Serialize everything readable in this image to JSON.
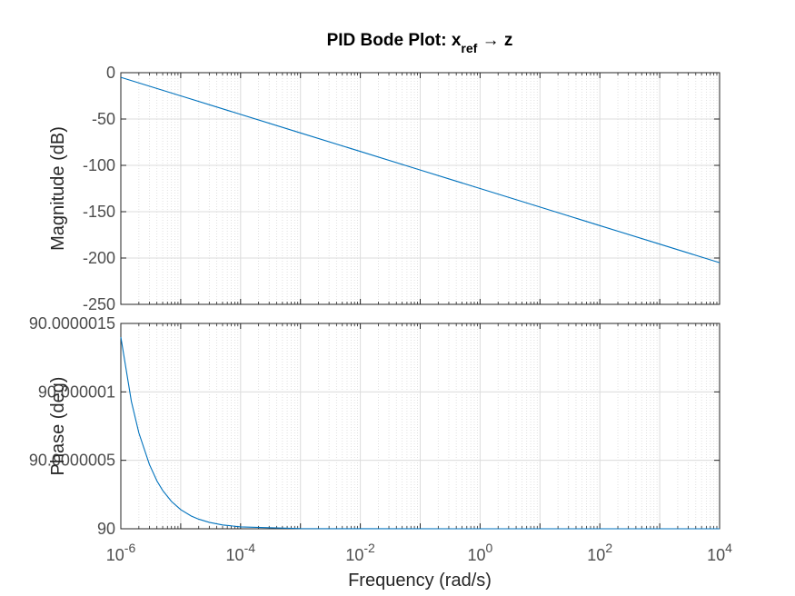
{
  "chart_data": {
    "type": "line",
    "title": "PID Bode Plot: x",
    "title_subscript": "ref",
    "title_arrow": "→",
    "title_suffix": "z",
    "xlabel": "Frequency  (rad/s)",
    "xscale": "log",
    "xlim": [
      1e-06,
      10000
    ],
    "x_ticks": [
      {
        "base": "10",
        "exp": "-6"
      },
      {
        "base": "10",
        "exp": "-4"
      },
      {
        "base": "10",
        "exp": "-2"
      },
      {
        "base": "10",
        "exp": "0"
      },
      {
        "base": "10",
        "exp": "2"
      },
      {
        "base": "10",
        "exp": "4"
      }
    ],
    "grid": true,
    "line_color": "#0072BD",
    "panels": [
      {
        "name": "magnitude",
        "ylabel": "Magnitude (dB)",
        "ylim": [
          -250,
          0
        ],
        "y_ticks": [
          0,
          -50,
          -100,
          -150,
          -200,
          -250
        ],
        "y_tick_labels": [
          "0",
          "-50",
          "-100",
          "-150",
          "-200",
          "-250"
        ],
        "series": [
          {
            "x": [
              1e-06,
              1e-05,
              0.0001,
              0.001,
              0.01,
              0.1,
              1,
              10,
              100,
              1000,
              10000
            ],
            "y": [
              -5,
              -25,
              -45,
              -65,
              -85,
              -105,
              -125,
              -145,
              -165,
              -185,
              -205
            ]
          }
        ]
      },
      {
        "name": "phase",
        "ylabel": "Phase (deg)",
        "ylim": [
          90,
          90.0000015
        ],
        "y_ticks": [
          90,
          90.0000005,
          90.000001,
          90.0000015
        ],
        "y_tick_labels": [
          "90",
          "90.0000005",
          "90.000001",
          "90.0000015"
        ],
        "series": [
          {
            "x": [
              1e-06,
              1.5e-06,
              2e-06,
              3e-06,
              4e-06,
              5e-06,
              7e-06,
              1e-05,
              1.5e-05,
              2e-05,
              3e-05,
              5e-05,
              0.0001,
              0.001,
              0.01,
              1,
              100,
              10000
            ],
            "y": [
              90.0000014,
              90.00000093,
              90.0000007,
              90.00000047,
              90.00000035,
              90.00000028,
              90.0000002,
              90.00000014,
              90.000000093,
              90.00000007,
              90.000000047,
              90.000000028,
              90.000000014,
              90.0000000014,
              90.00000000014,
              90,
              90,
              90
            ]
          }
        ]
      }
    ]
  }
}
